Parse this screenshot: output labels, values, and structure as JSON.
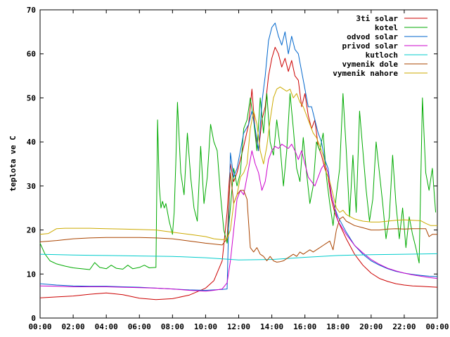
{
  "chart_data": {
    "type": "line",
    "title": "",
    "xlabel": "",
    "ylabel": "teplota ve C",
    "xlim": [
      0,
      24
    ],
    "ylim": [
      0,
      70
    ],
    "x_unit": "hours",
    "xticks": [
      "00:00",
      "02:00",
      "04:00",
      "06:00",
      "08:00",
      "10:00",
      "12:00",
      "14:00",
      "16:00",
      "18:00",
      "20:00",
      "22:00",
      "00:00"
    ],
    "yticks": [
      0,
      10,
      20,
      30,
      40,
      50,
      60,
      70
    ],
    "grid": false,
    "legend_position": "top-right",
    "series": [
      {
        "name": "3ti solar",
        "color": "#cc0000",
        "x": [
          0,
          1,
          2,
          3,
          4,
          5,
          6,
          7,
          8,
          9,
          10,
          10.5,
          11,
          11.3,
          11.5,
          11.7,
          11.9,
          12.1,
          12.3,
          12.6,
          12.8,
          13.0,
          13.2,
          13.4,
          13.6,
          13.8,
          14.0,
          14.2,
          14.4,
          14.6,
          14.8,
          15.0,
          15.2,
          15.4,
          15.6,
          15.8,
          16.0,
          16.2,
          16.4,
          16.6,
          16.8,
          17.0,
          17.2,
          17.4,
          17.6,
          17.8,
          18.0,
          18.5,
          19,
          19.5,
          20,
          20.5,
          21,
          21.5,
          22,
          22.5,
          23,
          23.5,
          24
        ],
        "y": [
          4.6,
          4.8,
          5.0,
          5.4,
          5.7,
          5.3,
          4.5,
          4.2,
          4.4,
          5.2,
          6.8,
          8.5,
          13.0,
          24.0,
          35.0,
          31.0,
          33.0,
          36.0,
          39.0,
          44.0,
          52.0,
          42.0,
          38.0,
          45.0,
          48.0,
          55.0,
          59.0,
          61.5,
          60.0,
          57.0,
          59.0,
          56.0,
          58.5,
          55.0,
          54.0,
          48.0,
          51.0,
          46.0,
          43.0,
          45.0,
          39.0,
          37.0,
          34.0,
          32.0,
          27.0,
          24.0,
          22.0,
          18.0,
          14.5,
          12.0,
          10.2,
          9.0,
          8.3,
          7.8,
          7.5,
          7.3,
          7.2,
          7.1,
          7.0
        ]
      },
      {
        "name": "kotel",
        "color": "#00aa00",
        "x": [
          0,
          0.3,
          0.6,
          1.0,
          1.5,
          2.0,
          2.5,
          3.0,
          3.3,
          3.6,
          4.0,
          4.3,
          4.6,
          5.0,
          5.3,
          5.6,
          6.0,
          6.3,
          6.6,
          7.0,
          7.1,
          7.2,
          7.3,
          7.4,
          7.5,
          7.6,
          7.7,
          7.8,
          8.0,
          8.1,
          8.2,
          8.3,
          8.5,
          8.7,
          8.9,
          9.1,
          9.3,
          9.5,
          9.7,
          9.9,
          10.1,
          10.3,
          10.5,
          10.7,
          10.9,
          11.1,
          11.3,
          11.5,
          11.7,
          11.9,
          12.1,
          12.3,
          12.5,
          12.7,
          12.9,
          13.1,
          13.3,
          13.5,
          13.7,
          13.9,
          14.1,
          14.3,
          14.5,
          14.7,
          14.9,
          15.1,
          15.3,
          15.5,
          15.7,
          15.9,
          16.1,
          16.3,
          16.5,
          16.7,
          16.9,
          17.1,
          17.3,
          17.5,
          17.7,
          17.9,
          18.1,
          18.3,
          18.5,
          18.7,
          18.9,
          19.1,
          19.3,
          19.5,
          19.7,
          19.9,
          20.1,
          20.3,
          20.5,
          20.7,
          20.9,
          21.1,
          21.3,
          21.5,
          21.7,
          21.9,
          22.1,
          22.3,
          22.5,
          22.7,
          22.9,
          23.1,
          23.3,
          23.5,
          23.7,
          23.9
        ],
        "y": [
          17.0,
          14.5,
          13.0,
          12.3,
          11.8,
          11.4,
          11.2,
          11.0,
          12.6,
          11.5,
          11.2,
          12.0,
          11.3,
          11.1,
          12.0,
          11.2,
          11.5,
          12.0,
          11.4,
          11.5,
          45.0,
          30.0,
          25.0,
          26.5,
          25.0,
          26.0,
          24.0,
          22.0,
          19.0,
          24.0,
          35.0,
          49.0,
          33.0,
          28.0,
          42.0,
          32.0,
          25.0,
          22.0,
          39.0,
          26.0,
          32.0,
          44.0,
          40.0,
          38.0,
          28.0,
          20.0,
          17.0,
          25.0,
          34.0,
          30.0,
          33.0,
          43.0,
          45.0,
          50.0,
          45.0,
          38.0,
          50.0,
          42.0,
          51.0,
          40.0,
          37.0,
          45.0,
          39.0,
          30.0,
          38.0,
          51.0,
          43.0,
          34.0,
          31.0,
          41.0,
          33.0,
          26.0,
          30.0,
          40.0,
          38.0,
          42.0,
          32.0,
          26.0,
          21.0,
          28.0,
          34.0,
          51.0,
          38.0,
          23.0,
          37.0,
          24.0,
          47.0,
          38.0,
          29.0,
          22.0,
          27.0,
          40.0,
          33.0,
          26.0,
          18.0,
          23.0,
          37.0,
          26.0,
          18.0,
          25.0,
          16.0,
          23.0,
          19.0,
          16.0,
          12.5,
          50.0,
          33.0,
          29.0,
          34.0,
          24.0
        ]
      },
      {
        "name": "odvod solar",
        "color": "#0066cc",
        "x": [
          0,
          1,
          2,
          3,
          4,
          5,
          6,
          7,
          8,
          9,
          10,
          10.5,
          11,
          11.3,
          11.5,
          11.7,
          11.9,
          12.1,
          12.3,
          12.6,
          12.8,
          13.0,
          13.2,
          13.4,
          13.6,
          13.8,
          14.0,
          14.2,
          14.4,
          14.6,
          14.8,
          15.0,
          15.2,
          15.4,
          15.6,
          15.8,
          16.0,
          16.2,
          16.4,
          16.6,
          16.8,
          17.0,
          17.2,
          17.4,
          17.6,
          17.8,
          18.0,
          18.5,
          19,
          19.5,
          20,
          20.5,
          21,
          21.5,
          22,
          22.5,
          23,
          23.5,
          24
        ],
        "y": [
          7.8,
          7.5,
          7.3,
          7.2,
          7.2,
          7.1,
          7.0,
          6.8,
          6.6,
          6.4,
          6.3,
          6.4,
          6.5,
          6.6,
          37.5,
          32.0,
          34.0,
          38.0,
          42.0,
          44.0,
          47.0,
          43.0,
          38.0,
          49.0,
          55.0,
          63.0,
          66.0,
          67.0,
          64.0,
          62.0,
          65.0,
          60.0,
          64.0,
          61.0,
          60.0,
          56.0,
          52.0,
          48.0,
          48.0,
          45.0,
          42.0,
          40.0,
          36.0,
          34.0,
          28.0,
          25.0,
          23.0,
          19.5,
          16.5,
          14.5,
          13.0,
          12.0,
          11.2,
          10.6,
          10.2,
          9.9,
          9.7,
          9.5,
          9.4
        ]
      },
      {
        "name": "privod solar",
        "color": "#cc00cc",
        "x": [
          0,
          1,
          2,
          3,
          4,
          5,
          6,
          7,
          8,
          9,
          10,
          10.5,
          11,
          11.3,
          11.5,
          11.7,
          11.9,
          12.1,
          12.3,
          12.6,
          12.8,
          13.0,
          13.2,
          13.4,
          13.6,
          13.8,
          14.0,
          14.2,
          14.4,
          14.6,
          14.8,
          15.0,
          15.2,
          15.4,
          15.6,
          15.8,
          16.0,
          16.2,
          16.4,
          16.6,
          16.8,
          17.0,
          17.2,
          17.4,
          17.6,
          17.8,
          18.0,
          18.5,
          19,
          19.5,
          20,
          20.5,
          21,
          21.5,
          22,
          22.5,
          23,
          23.5,
          24
        ],
        "y": [
          7.3,
          7.2,
          7.1,
          7.1,
          7.1,
          7.0,
          6.9,
          6.8,
          6.6,
          6.3,
          6.1,
          6.3,
          6.6,
          8.0,
          13.0,
          20.0,
          27.0,
          29.0,
          28.0,
          34.0,
          38.0,
          35.0,
          33.0,
          29.0,
          31.0,
          36.0,
          38.0,
          39.0,
          38.5,
          39.5,
          39.0,
          38.5,
          39.5,
          38.0,
          36.0,
          38.0,
          35.0,
          32.0,
          31.0,
          30.0,
          32.0,
          34.0,
          35.0,
          33.0,
          28.0,
          25.0,
          22.0,
          19.0,
          16.5,
          14.8,
          13.3,
          12.2,
          11.3,
          10.7,
          10.2,
          9.8,
          9.5,
          9.2,
          9.0
        ]
      },
      {
        "name": "kutloch",
        "color": "#00cccc",
        "x": [
          0,
          2,
          4,
          6,
          8,
          10,
          12,
          14,
          16,
          18,
          20,
          22,
          24
        ],
        "y": [
          14.5,
          14.3,
          14.2,
          14.1,
          14.0,
          13.7,
          13.2,
          13.3,
          13.8,
          14.2,
          14.4,
          14.5,
          14.6
        ]
      },
      {
        "name": "vymenik dole",
        "color": "#aa4400",
        "x": [
          0,
          1,
          2,
          3,
          4,
          5,
          6,
          7,
          8,
          9,
          10,
          10.5,
          11,
          11.3,
          11.5,
          11.7,
          11.9,
          12.1,
          12.3,
          12.5,
          12.7,
          12.9,
          13.1,
          13.3,
          13.5,
          13.7,
          13.9,
          14.1,
          14.3,
          14.5,
          14.7,
          14.9,
          15.1,
          15.3,
          15.5,
          15.7,
          15.9,
          16.1,
          16.3,
          16.5,
          16.7,
          16.9,
          17.1,
          17.3,
          17.5,
          17.7,
          17.9,
          18.1,
          18.3,
          18.5,
          19,
          19.5,
          20,
          20.5,
          21,
          21.5,
          22,
          22.5,
          23,
          23.3,
          23.5,
          23.7,
          24
        ],
        "y": [
          17.3,
          17.6,
          18.0,
          18.2,
          18.3,
          18.3,
          18.3,
          18.2,
          18.0,
          17.5,
          17.0,
          16.8,
          16.6,
          18.0,
          33.0,
          26.0,
          28.0,
          29.0,
          29.0,
          27.0,
          16.0,
          15.0,
          16.0,
          14.5,
          14.0,
          13.0,
          14.0,
          13.0,
          12.7,
          12.8,
          13.0,
          13.5,
          14.0,
          14.5,
          14.0,
          15.0,
          14.5,
          15.0,
          15.5,
          15.0,
          15.5,
          16.0,
          16.5,
          17.0,
          17.5,
          15.5,
          20.0,
          22.5,
          23.0,
          22.0,
          21.0,
          20.5,
          20.0,
          20.0,
          20.2,
          20.3,
          20.2,
          20.3,
          20.3,
          20.3,
          18.5,
          19.0,
          19.0
        ]
      },
      {
        "name": "vymenik nahore",
        "color": "#ccaa00",
        "x": [
          0,
          0.5,
          1.0,
          1.5,
          2,
          3,
          4,
          5,
          6,
          7,
          8,
          9,
          10,
          10.5,
          11,
          11.3,
          11.5,
          11.7,
          11.9,
          12.1,
          12.3,
          12.5,
          12.7,
          12.9,
          13.1,
          13.3,
          13.5,
          13.7,
          13.9,
          14.1,
          14.3,
          14.5,
          14.7,
          14.9,
          15.1,
          15.3,
          15.5,
          15.7,
          15.9,
          16.1,
          16.3,
          16.5,
          16.7,
          16.9,
          17.1,
          17.3,
          17.5,
          17.7,
          17.9,
          18.1,
          18.3,
          18.5,
          19,
          19.5,
          20,
          20.5,
          21,
          21.5,
          22,
          22.5,
          23,
          23.3,
          23.6,
          24
        ],
        "y": [
          19.0,
          19.2,
          20.3,
          20.4,
          20.4,
          20.4,
          20.3,
          20.2,
          20.1,
          20.0,
          19.5,
          19.0,
          18.5,
          18.0,
          17.8,
          18.0,
          20.0,
          26.0,
          28.0,
          32.0,
          33.0,
          35.0,
          43.0,
          47.0,
          44.0,
          38.0,
          35.0,
          39.0,
          45.0,
          50.0,
          52.0,
          52.5,
          52.0,
          51.5,
          52.0,
          50.0,
          51.0,
          49.0,
          48.0,
          46.0,
          44.0,
          42.0,
          41.0,
          39.0,
          37.0,
          33.0,
          31.0,
          28.0,
          25.0,
          24.0,
          24.5,
          23.5,
          22.5,
          22.0,
          21.8,
          21.8,
          22.0,
          22.2,
          22.3,
          22.2,
          22.1,
          21.5,
          21.0,
          21.0
        ]
      }
    ]
  }
}
